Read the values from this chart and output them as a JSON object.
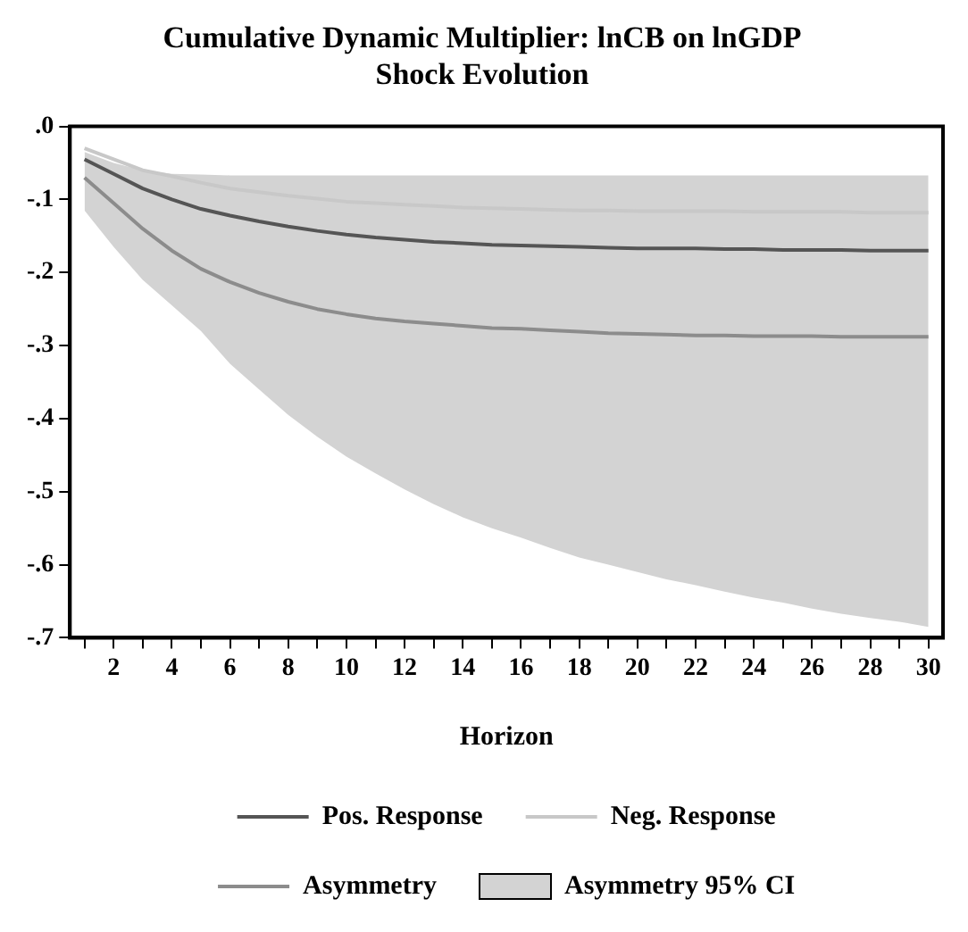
{
  "chart_data": {
    "type": "line",
    "title": "Cumulative Dynamic Multiplier: lnCB on lnGDP\nShock Evolution",
    "xlabel": "Horizon",
    "x": [
      1,
      2,
      3,
      4,
      5,
      6,
      7,
      8,
      9,
      10,
      11,
      12,
      13,
      14,
      15,
      16,
      17,
      18,
      19,
      20,
      21,
      22,
      23,
      24,
      25,
      26,
      27,
      28,
      29,
      30
    ],
    "xlim": [
      0.5,
      30.5
    ],
    "xticks": [
      {
        "value": 1,
        "label": null
      },
      2,
      {
        "value": 3,
        "label": null
      },
      4,
      {
        "value": 5,
        "label": null
      },
      6,
      {
        "value": 7,
        "label": null
      },
      8,
      {
        "value": 9,
        "label": null
      },
      10,
      {
        "value": 11,
        "label": null
      },
      12,
      {
        "value": 13,
        "label": null
      },
      14,
      {
        "value": 15,
        "label": null
      },
      16,
      {
        "value": 17,
        "label": null
      },
      18,
      {
        "value": 19,
        "label": null
      },
      20,
      {
        "value": 21,
        "label": null
      },
      22,
      {
        "value": 23,
        "label": null
      },
      24,
      {
        "value": 25,
        "label": null
      },
      26,
      {
        "value": 27,
        "label": null
      },
      28,
      {
        "value": 29,
        "label": null
      },
      30
    ],
    "ylim": [
      -0.7,
      0
    ],
    "yticks": [
      {
        "value": 0,
        "label": ".0"
      },
      {
        "value": -0.1,
        "label": "-.1"
      },
      {
        "value": -0.2,
        "label": "-.2"
      },
      {
        "value": -0.3,
        "label": "-.3"
      },
      {
        "value": -0.4,
        "label": "-.4"
      },
      {
        "value": -0.5,
        "label": "-.5"
      },
      {
        "value": -0.6,
        "label": "-.6"
      },
      {
        "value": -0.7,
        "label": "-.7"
      }
    ],
    "grid": false,
    "legend": "bottom",
    "marker": "none",
    "line_style": "solid",
    "series": [
      {
        "name": "Asymmetry 95% CI",
        "type": "area",
        "color": "#d3d3d3",
        "lower": [
          -0.115,
          -0.165,
          -0.21,
          -0.245,
          -0.28,
          -0.325,
          -0.36,
          -0.395,
          -0.425,
          -0.452,
          -0.475,
          -0.497,
          -0.517,
          -0.535,
          -0.55,
          -0.563,
          -0.577,
          -0.59,
          -0.6,
          -0.61,
          -0.62,
          -0.628,
          -0.637,
          -0.645,
          -0.652,
          -0.66,
          -0.667,
          -0.673,
          -0.678,
          -0.685
        ],
        "values": [
          null,
          null,
          null,
          null,
          null,
          null,
          null,
          null,
          null,
          null,
          null,
          null,
          null,
          null,
          null,
          null,
          null,
          null,
          null,
          null,
          null,
          null,
          null,
          null,
          null,
          null,
          null,
          null,
          null,
          null
        ],
        "upper": [
          -0.035,
          -0.05,
          -0.06,
          -0.065,
          -0.066,
          -0.067,
          -0.067,
          -0.067,
          -0.067,
          -0.067,
          -0.067,
          -0.067,
          -0.067,
          -0.067,
          -0.067,
          -0.067,
          -0.067,
          -0.067,
          -0.067,
          -0.067,
          -0.067,
          -0.067,
          -0.067,
          -0.067,
          -0.067,
          -0.067,
          -0.067,
          -0.067,
          -0.067,
          -0.067
        ]
      },
      {
        "name": "Pos. Response",
        "color": "#555555",
        "values": [
          -0.045,
          -0.065,
          -0.085,
          -0.1,
          -0.113,
          -0.122,
          -0.13,
          -0.137,
          -0.143,
          -0.148,
          -0.152,
          -0.155,
          -0.158,
          -0.16,
          -0.162,
          -0.163,
          -0.164,
          -0.165,
          -0.166,
          -0.167,
          -0.167,
          -0.167,
          -0.168,
          -0.168,
          -0.169,
          -0.169,
          -0.169,
          -0.17,
          -0.17,
          -0.17
        ]
      },
      {
        "name": "Neg. Response",
        "color": "#c8c8c8",
        "values": [
          -0.03,
          -0.045,
          -0.06,
          -0.068,
          -0.077,
          -0.085,
          -0.09,
          -0.095,
          -0.099,
          -0.103,
          -0.105,
          -0.107,
          -0.109,
          -0.111,
          -0.112,
          -0.113,
          -0.114,
          -0.115,
          -0.115,
          -0.116,
          -0.116,
          -0.116,
          -0.116,
          -0.117,
          -0.117,
          -0.117,
          -0.117,
          -0.118,
          -0.118,
          -0.118
        ]
      },
      {
        "name": "Asymmetry",
        "color": "#8c8c8c",
        "values": [
          -0.07,
          -0.105,
          -0.14,
          -0.17,
          -0.195,
          -0.213,
          -0.228,
          -0.24,
          -0.25,
          -0.257,
          -0.263,
          -0.267,
          -0.27,
          -0.273,
          -0.276,
          -0.277,
          -0.279,
          -0.281,
          -0.283,
          -0.284,
          -0.285,
          -0.286,
          -0.286,
          -0.287,
          -0.287,
          -0.287,
          -0.288,
          -0.288,
          -0.288,
          -0.288
        ]
      }
    ]
  }
}
